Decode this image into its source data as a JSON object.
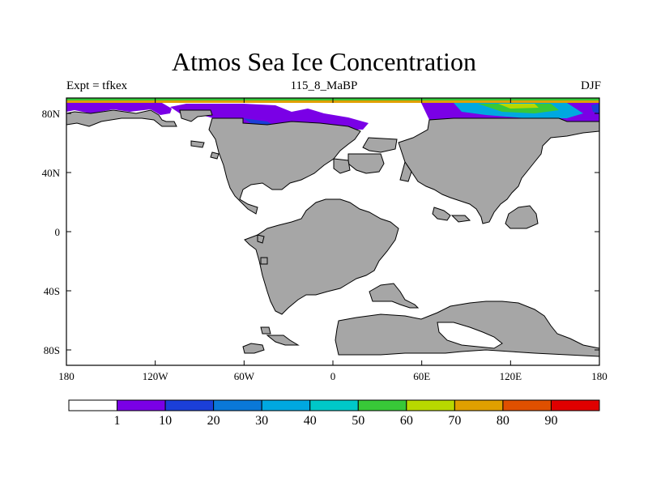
{
  "map": {
    "title": "Atmos Sea Ice Concentration",
    "left_string": "Expt = tfkex",
    "center_string": "115_8_MaBP",
    "right_string": "DJF",
    "x_ticks": [
      "180",
      "120W",
      "60W",
      "0",
      "60E",
      "120E",
      "180"
    ],
    "y_ticks": [
      "80N",
      "40N",
      "0",
      "40S",
      "80S"
    ],
    "land_color": "#a6a6a6",
    "ocean_color": "#ffffff"
  },
  "colorbar": {
    "labels": [
      "1",
      "10",
      "20",
      "30",
      "40",
      "50",
      "60",
      "70",
      "80",
      "90"
    ],
    "colors": [
      "#ffffff",
      "#7a00e6",
      "#1b3fd8",
      "#0a78d8",
      "#00a8e0",
      "#00c8c8",
      "#38c838",
      "#b8d800",
      "#e0a000",
      "#e05000",
      "#e00000"
    ]
  }
}
